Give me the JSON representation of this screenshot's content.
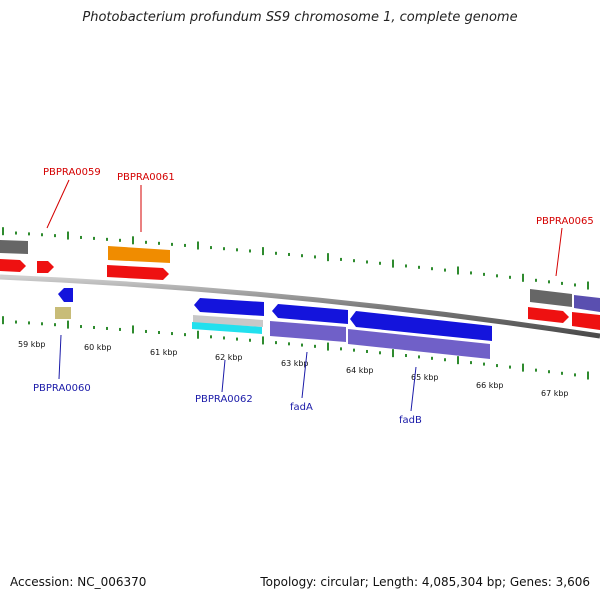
{
  "title": "Photobacterium profundum SS9 chromosome 1, complete genome",
  "footer": {
    "accession": "Accession: NC_006370",
    "summary": "Topology: circular; Length: 4,085,304 bp; Genes: 3,606"
  },
  "colors": {
    "backbone": "#808080",
    "tick": "#2e8b2e",
    "red": "#ee1111",
    "orange": "#f08c00",
    "gray": "#666666",
    "blue": "#1414dc",
    "slate": "#7060c8",
    "khaki": "#c8bc78",
    "cyan": "#22e0ee",
    "silver": "#c8c8c8",
    "label_top": "#d40000",
    "label_bot": "#1a1aa8"
  },
  "kbp_labels": [
    "59 kbp",
    "60 kbp",
    "61 kbp",
    "62 kbp",
    "63 kbp",
    "64 kbp",
    "65 kbp",
    "66 kbp",
    "67 kbp"
  ],
  "gene_labels_top": [
    "PBPRA0059",
    "PBPRA0061",
    "PBPRA0065"
  ],
  "gene_labels_bottom": [
    "PBPRA0060",
    "PBPRA0062",
    "fadA",
    "fadB"
  ]
}
